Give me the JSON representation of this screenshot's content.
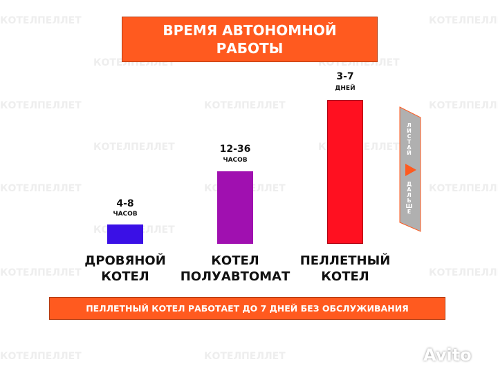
{
  "title": [
    "ВРЕМЯ АВТОНОМНОЙ",
    "РАБОТЫ"
  ],
  "bars": [
    {
      "value": "4-8",
      "unit": "ЧАСОВ",
      "label": [
        "ДРОВЯНОЙ",
        "КОТЕЛ"
      ]
    },
    {
      "value": "12-36",
      "unit": "ЧАСОВ",
      "label": [
        "КОТЕЛ",
        "ПОЛУАВТОМАТ"
      ]
    },
    {
      "value": "3-7",
      "unit": "ДНЕЙ",
      "label": [
        "ПЕЛЛЕТНЫЙ",
        "КОТЕЛ"
      ]
    }
  ],
  "side_button": {
    "top": "ЛИСТАЙ",
    "bottom": "ДАЛЬШЕ"
  },
  "footer": "ПЕЛЛЕТНЫЙ КОТЕЛ РАБОТАЕТ ДО 7 ДНЕЙ БЕЗ ОБСЛУЖИВАНИЯ",
  "watermark": "КОТЕЛПЕЛЛЕТ",
  "logo": "Avito"
}
